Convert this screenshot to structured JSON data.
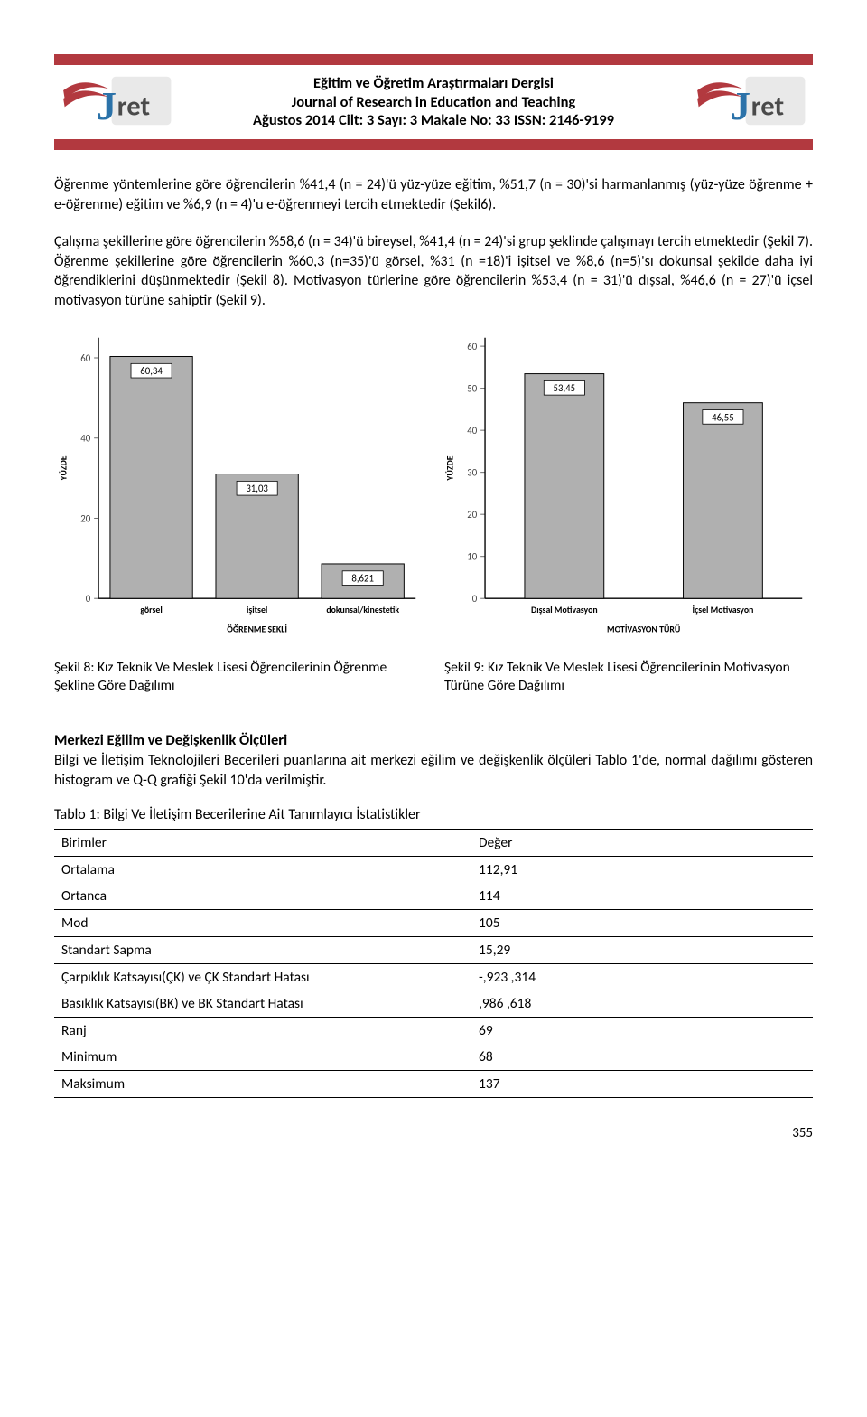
{
  "header": {
    "stripe_color": "#b2393f",
    "line1": "Eğitim ve Öğretim Araştırmaları Dergisi",
    "line2": "Journal of Research in Education and Teaching",
    "line3": "Ağustos 2014  Cilt: 3  Sayı: 3  Makale No: 33   ISSN: 2146-9199",
    "logo": {
      "j_color": "#2b72a9",
      "ret_color": "#4a4a4a",
      "swoosh_color": "#b2393f",
      "square_fill": "#e9e9e9",
      "j_text": "J",
      "ret_text": "ret"
    }
  },
  "paragraph1": "Öğrenme yöntemlerine göre öğrencilerin %41,4 (n = 24)'ü yüz-yüze eğitim, %51,7 (n = 30)'si harmanlanmış (yüz-yüze öğrenme + e-öğrenme) eğitim ve %6,9 (n = 4)'u e-öğrenmeyi tercih etmektedir (Şekil6).",
  "paragraph2": "Çalışma şekillerine göre öğrencilerin %58,6 (n = 34)'ü bireysel, %41,4 (n = 24)'si grup şeklinde çalışmayı tercih etmektedir (Şekil 7).  Öğrenme şekillerine göre öğrencilerin %60,3 (n=35)'ü görsel, %31 (n =18)'i işitsel ve %8,6 (n=5)'sı dokunsal şekilde daha iyi öğrendiklerini düşünmektedir (Şekil 8). Motivasyon türlerine göre öğrencilerin %53,4 (n = 31)'ü dışsal, %46,6 (n = 27)'ü içsel motivasyon türüne sahiptir (Şekil 9).",
  "chart_left": {
    "type": "bar",
    "ylabel": "YÜZDE",
    "ylabel_fontsize": 10,
    "xlabel": "ÖĞRENME ŞEKLİ",
    "xlabel_fontsize": 10,
    "categories": [
      "görsel",
      "işitsel",
      "dokunsal/kinestetik"
    ],
    "value_labels": [
      "60,34",
      "31,03",
      "8,621"
    ],
    "values": [
      60.34,
      31.03,
      8.621
    ],
    "bar_color": "#b0b0b0",
    "bar_border": "#000000",
    "background_color": "#ffffff",
    "axis_color": "#000000",
    "tick_color": "#6a6a6a",
    "ylim": [
      0,
      65
    ],
    "yticks": [
      0,
      20,
      40,
      60
    ],
    "bar_width": 0.78,
    "label_fontsize": 9,
    "tick_fontsize": 10,
    "tick_fontweight": "bold"
  },
  "chart_right": {
    "type": "bar",
    "ylabel": "YÜZDE",
    "ylabel_fontsize": 10,
    "xlabel": "MOTİVASYON TÜRÜ",
    "xlabel_fontsize": 10,
    "categories": [
      "Dışsal Motivasyon",
      "İçsel Motivasyon"
    ],
    "value_labels": [
      "53,45",
      "46,55"
    ],
    "values": [
      53.45,
      46.55
    ],
    "bar_color": "#b0b0b0",
    "bar_border": "#000000",
    "background_color": "#ffffff",
    "axis_color": "#000000",
    "tick_color": "#6a6a6a",
    "ylim": [
      0,
      62
    ],
    "yticks": [
      0,
      10,
      20,
      30,
      40,
      50,
      60
    ],
    "bar_width": 0.5,
    "label_fontsize": 9,
    "tick_fontsize": 10,
    "tick_fontweight": "bold"
  },
  "caption_left": "Şekil 8: Kız Teknik Ve Meslek Lisesi Öğrencilerinin Öğrenme Şekline Göre Dağılımı",
  "caption_right": "Şekil 9: Kız Teknik Ve Meslek Lisesi Öğrencilerinin Motivasyon Türüne Göre Dağılımı",
  "section_title": "Merkezi Eğilim ve Değişkenlik Ölçüleri",
  "section_intro": "Bilgi ve İletişim Teknolojileri Becerileri puanlarına ait merkezi eğilim ve değişkenlik ölçüleri Tablo 1'de, normal dağılımı gösteren histogram ve Q-Q grafiği Şekil 10'da verilmiştir.",
  "table_caption": "Tablo 1: Bilgi Ve İletişim Becerilerine Ait Tanımlayıcı İstatistikler",
  "table": {
    "header": [
      "Birimler",
      "Değer"
    ],
    "rows": [
      {
        "label": "Ortalama",
        "value": "112,91",
        "sep": false
      },
      {
        "label": "Ortanca",
        "value": "114",
        "sep": true
      },
      {
        "label": "Mod",
        "value": "105",
        "sep": true
      },
      {
        "label": "Standart Sapma",
        "value": "15,29",
        "sep": true
      },
      {
        "label": "Çarpıklık Katsayısı(ÇK) ve ÇK Standart Hatası",
        "value": "-,923  ,314",
        "sep": false
      },
      {
        "label": "Basıklık Katsayısı(BK) ve BK Standart Hatası",
        "value": " ,986  ,618",
        "sep": true
      },
      {
        "label": "Ranj",
        "value": "69",
        "sep": false
      },
      {
        "label": "Minimum",
        "value": "68",
        "sep": true
      },
      {
        "label": "Maksimum",
        "value": "137",
        "sep": true
      }
    ]
  },
  "page_number": "355"
}
